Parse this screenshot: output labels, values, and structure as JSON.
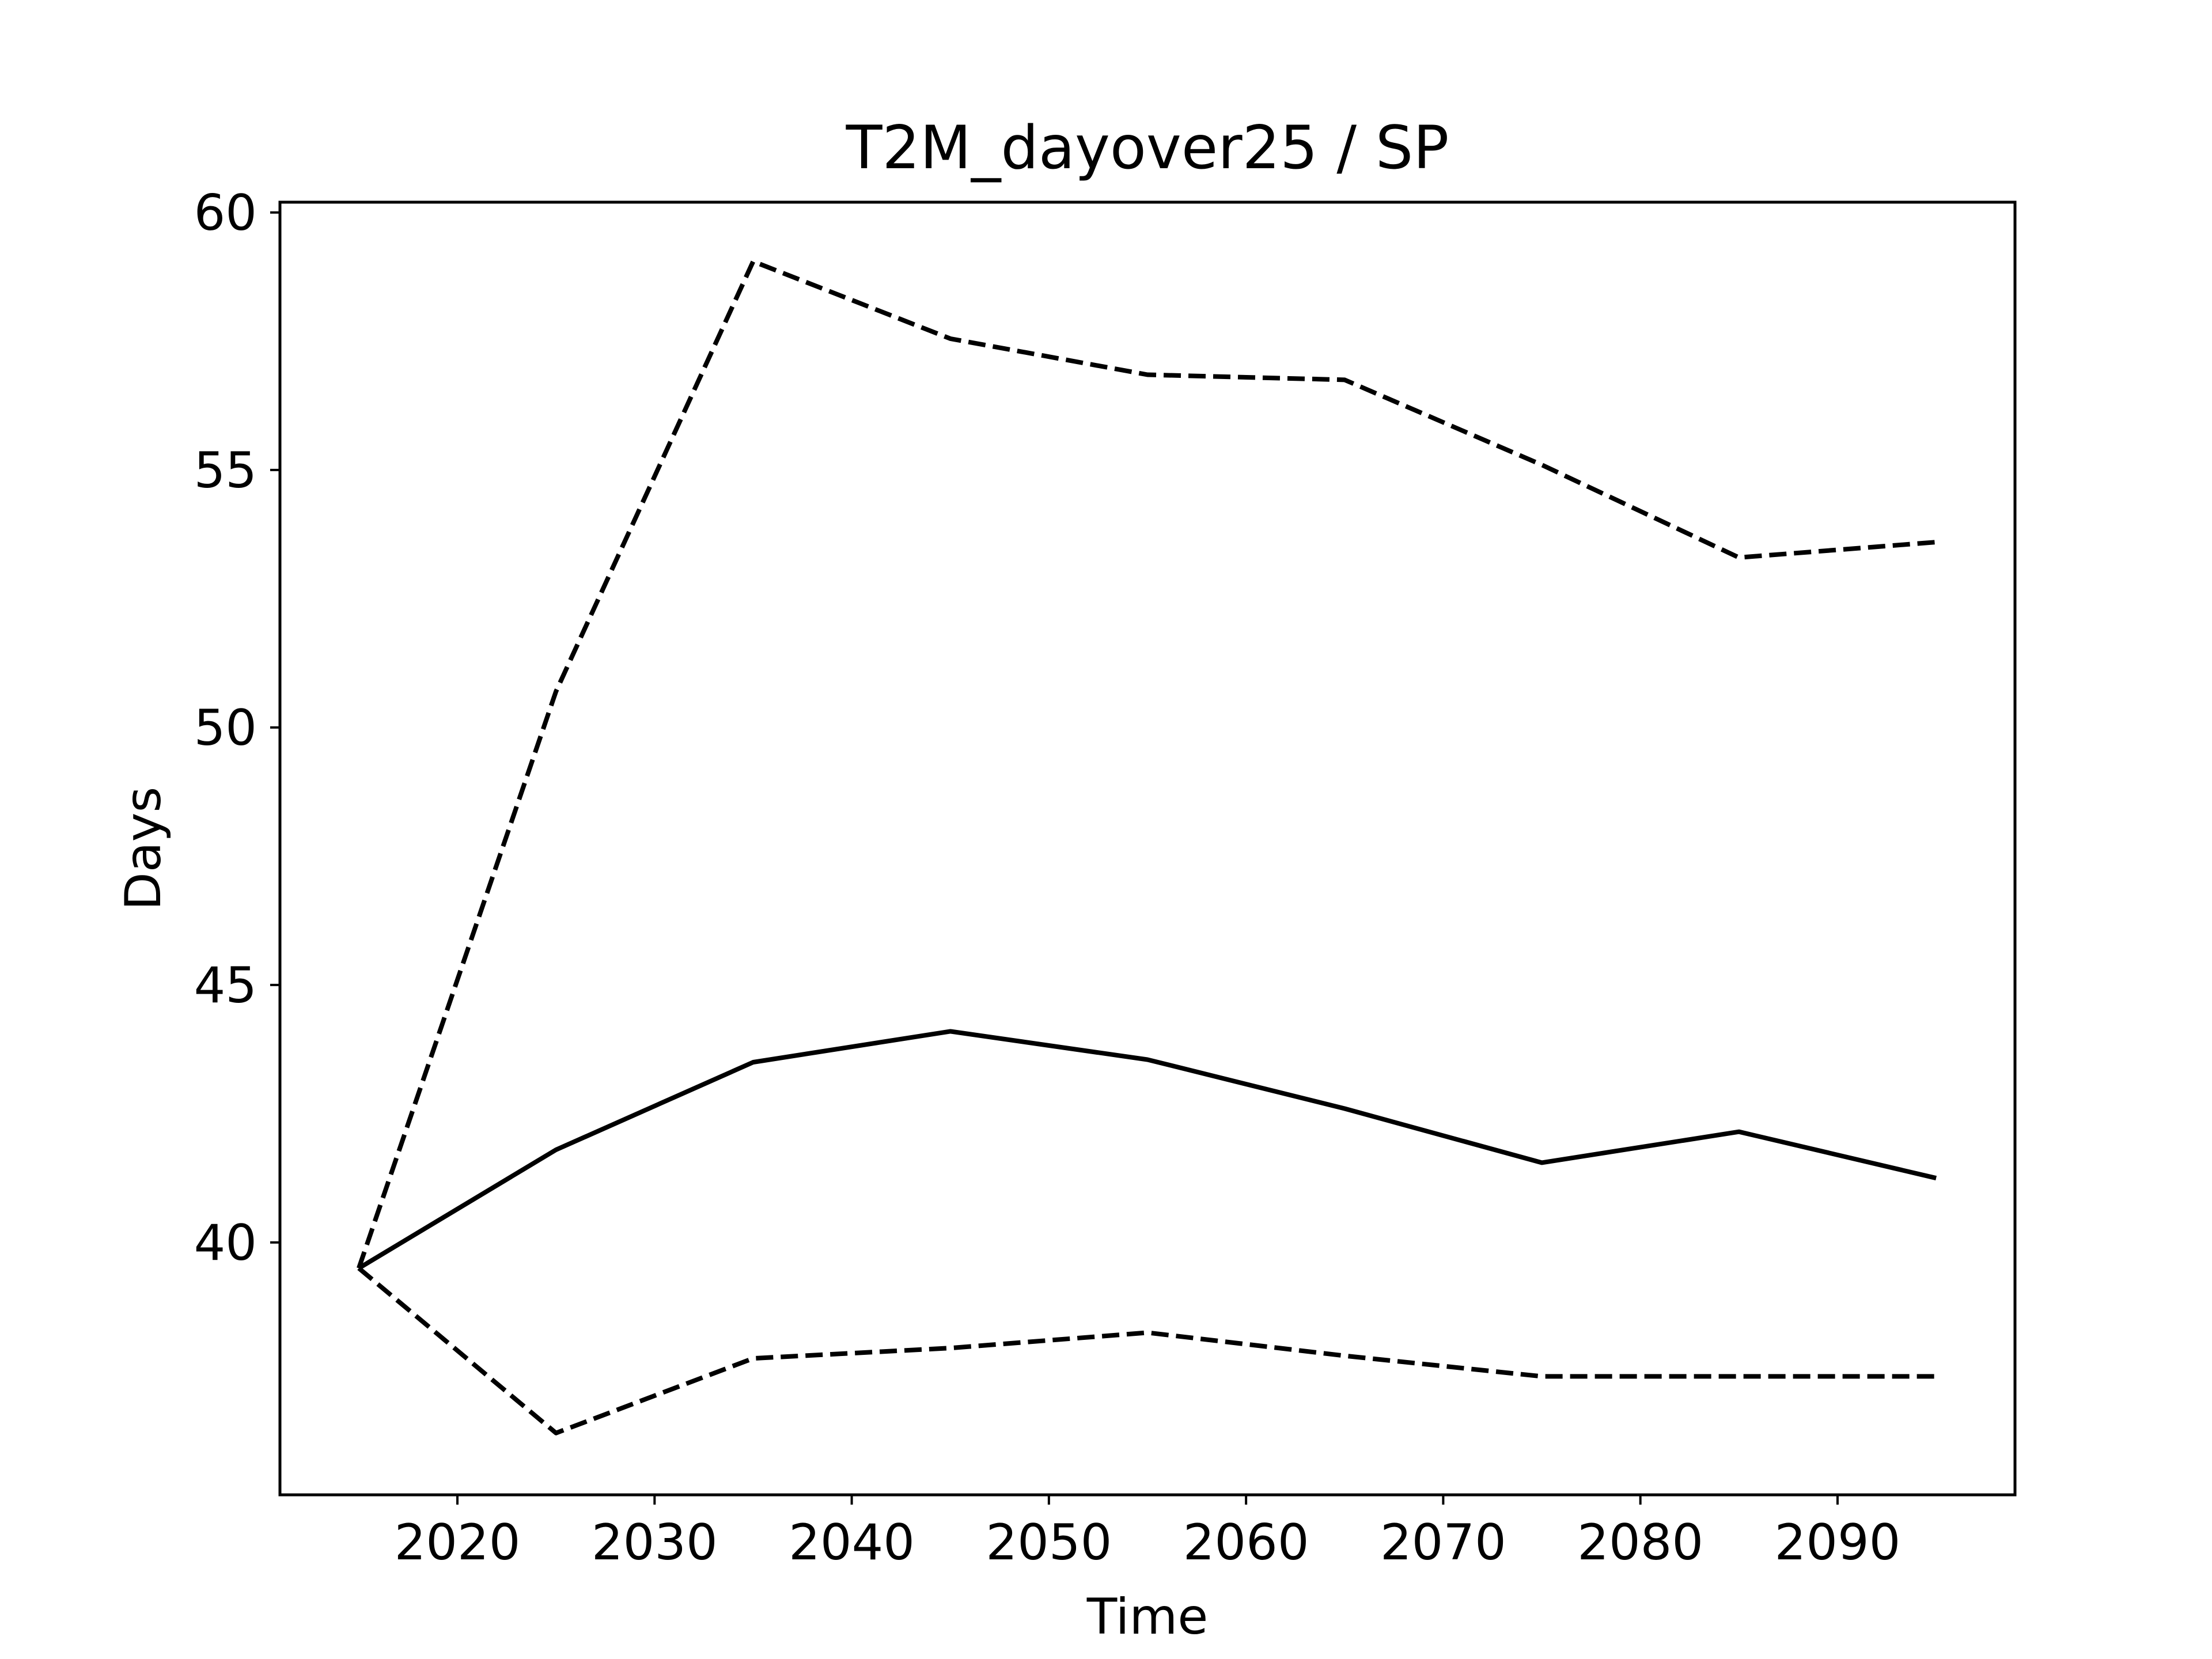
{
  "chart_data": {
    "type": "line",
    "title": "T2M_dayover25 / SP",
    "xlabel": "Time",
    "ylabel": "Days",
    "xlim": [
      2011,
      2099
    ],
    "ylim": [
      35.1,
      60.2
    ],
    "xticks": [
      2020,
      2030,
      2040,
      2050,
      2060,
      2070,
      2080,
      2090
    ],
    "yticks": [
      40,
      45,
      50,
      55,
      60
    ],
    "grid": false,
    "legend": "none",
    "x": [
      2015,
      2025,
      2035,
      2045,
      2055,
      2065,
      2075,
      2085,
      2095
    ],
    "series": [
      {
        "style": "solid",
        "color": "#000000",
        "values": [
          39.5,
          41.8,
          43.5,
          44.1,
          43.55,
          42.6,
          41.55,
          42.15,
          41.25
        ]
      },
      {
        "style": "dashed",
        "color": "#000000",
        "values": [
          39.5,
          50.7,
          59.05,
          57.55,
          56.85,
          56.75,
          55.1,
          53.3,
          53.6
        ]
      },
      {
        "style": "dashed",
        "color": "#000000",
        "values": [
          39.5,
          36.3,
          37.75,
          37.95,
          38.25,
          37.8,
          37.4,
          37.4,
          37.4
        ]
      }
    ]
  }
}
